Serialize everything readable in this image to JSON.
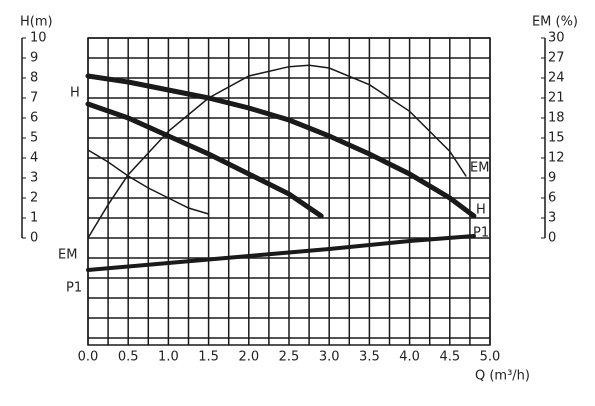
{
  "chart_data": {
    "type": "line",
    "xlabel": "Q (m³/h)",
    "ylabel": "H(m)",
    "y2label": "EM (%)",
    "xlim": [
      0,
      5
    ],
    "xticks": [
      {
        "value": 0,
        "label": "0.0"
      },
      0.5,
      {
        "value": 1,
        "label": "1.0"
      },
      1.5,
      {
        "value": 2,
        "label": "2.0"
      },
      2.5,
      {
        "value": 3,
        "label": "3.0"
      },
      3.5,
      {
        "value": 4,
        "label": "4.0"
      },
      4.5,
      {
        "value": 5,
        "label": "5.0"
      }
    ],
    "ylim": [
      -5.35,
      10
    ],
    "yticks": [
      0,
      1,
      2,
      3,
      4,
      5,
      6,
      7,
      8,
      9,
      10
    ],
    "y2lim": [
      -16.05,
      30
    ],
    "y2ticks": [
      0,
      3,
      6,
      9,
      12,
      15,
      18,
      21,
      24,
      27,
      30
    ],
    "grid": true,
    "series": [
      {
        "name": "H",
        "color": "#1a1a1a",
        "line_width": 5,
        "x": [
          0,
          0.5,
          1,
          1.5,
          2,
          2.5,
          3,
          3.5,
          4,
          4.5,
          4.8
        ],
        "values": [
          8.1,
          7.8,
          7.4,
          7.0,
          6.5,
          5.9,
          5.1,
          4.2,
          3.2,
          2.0,
          1.1
        ]
      },
      {
        "color": "#1a1a1a",
        "line_width": 5,
        "x": [
          0,
          0.5,
          1,
          1.5,
          2,
          2.5,
          2.9
        ],
        "values": [
          6.7,
          6.0,
          5.1,
          4.2,
          3.2,
          2.2,
          1.1
        ]
      },
      {
        "color": "#1a1a1a",
        "line_width": 1.5,
        "x": [
          0,
          0.25,
          0.5,
          0.75,
          1,
          1.25,
          1.5
        ],
        "values": [
          4.4,
          3.8,
          3.1,
          2.5,
          2.0,
          1.5,
          1.2
        ]
      },
      {
        "name": "EM",
        "color": "#1a1a1a",
        "line_width": 1.5,
        "axis": "y2",
        "x": [
          0,
          0.25,
          0.5,
          1,
          1.5,
          2,
          2.5,
          2.75,
          3,
          3.5,
          4,
          4.5,
          4.7
        ],
        "values": [
          0,
          5,
          9.5,
          16,
          21,
          24.3,
          25.7,
          25.9,
          25.5,
          23,
          19,
          13,
          9.3
        ]
      },
      {
        "name": "P1",
        "color": "#1a1a1a",
        "line_width": 4,
        "x": [
          0,
          1,
          2,
          3,
          4,
          4.8
        ],
        "values": [
          -1.6,
          -1.25,
          -0.9,
          -0.55,
          -0.15,
          0.1
        ]
      }
    ]
  }
}
